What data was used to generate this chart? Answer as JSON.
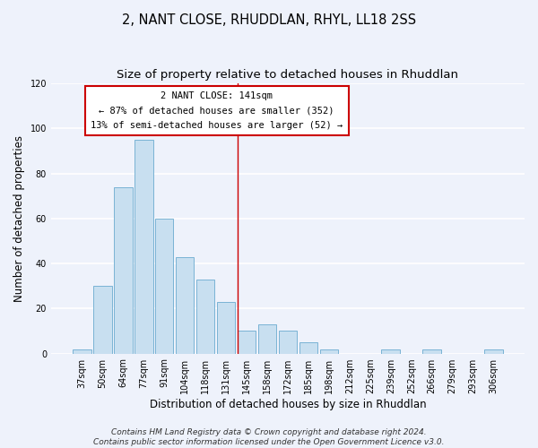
{
  "title": "2, NANT CLOSE, RHUDDLAN, RHYL, LL18 2SS",
  "subtitle": "Size of property relative to detached houses in Rhuddlan",
  "xlabel": "Distribution of detached houses by size in Rhuddlan",
  "ylabel": "Number of detached properties",
  "bar_labels": [
    "37sqm",
    "50sqm",
    "64sqm",
    "77sqm",
    "91sqm",
    "104sqm",
    "118sqm",
    "131sqm",
    "145sqm",
    "158sqm",
    "172sqm",
    "185sqm",
    "198sqm",
    "212sqm",
    "225sqm",
    "239sqm",
    "252sqm",
    "266sqm",
    "279sqm",
    "293sqm",
    "306sqm"
  ],
  "bar_values": [
    2,
    30,
    74,
    95,
    60,
    43,
    33,
    23,
    10,
    13,
    10,
    5,
    2,
    0,
    0,
    2,
    0,
    2,
    0,
    0,
    2
  ],
  "bar_color": "#c8dff0",
  "bar_edge_color": "#7ab3d4",
  "reference_line_color": "#cc0000",
  "annotation_title": "2 NANT CLOSE: 141sqm",
  "annotation_line1": "← 87% of detached houses are smaller (352)",
  "annotation_line2": "13% of semi-detached houses are larger (52) →",
  "annotation_box_facecolor": "#ffffff",
  "annotation_box_edgecolor": "#cc0000",
  "ylim": [
    0,
    120
  ],
  "yticks": [
    0,
    20,
    40,
    60,
    80,
    100,
    120
  ],
  "footer1": "Contains HM Land Registry data © Crown copyright and database right 2024.",
  "footer2": "Contains public sector information licensed under the Open Government Licence v3.0.",
  "background_color": "#eef2fb",
  "grid_color": "#ffffff",
  "title_fontsize": 10.5,
  "subtitle_fontsize": 9.5,
  "axis_label_fontsize": 8.5,
  "tick_fontsize": 7,
  "footer_fontsize": 6.5,
  "ann_fontsize": 7.5
}
